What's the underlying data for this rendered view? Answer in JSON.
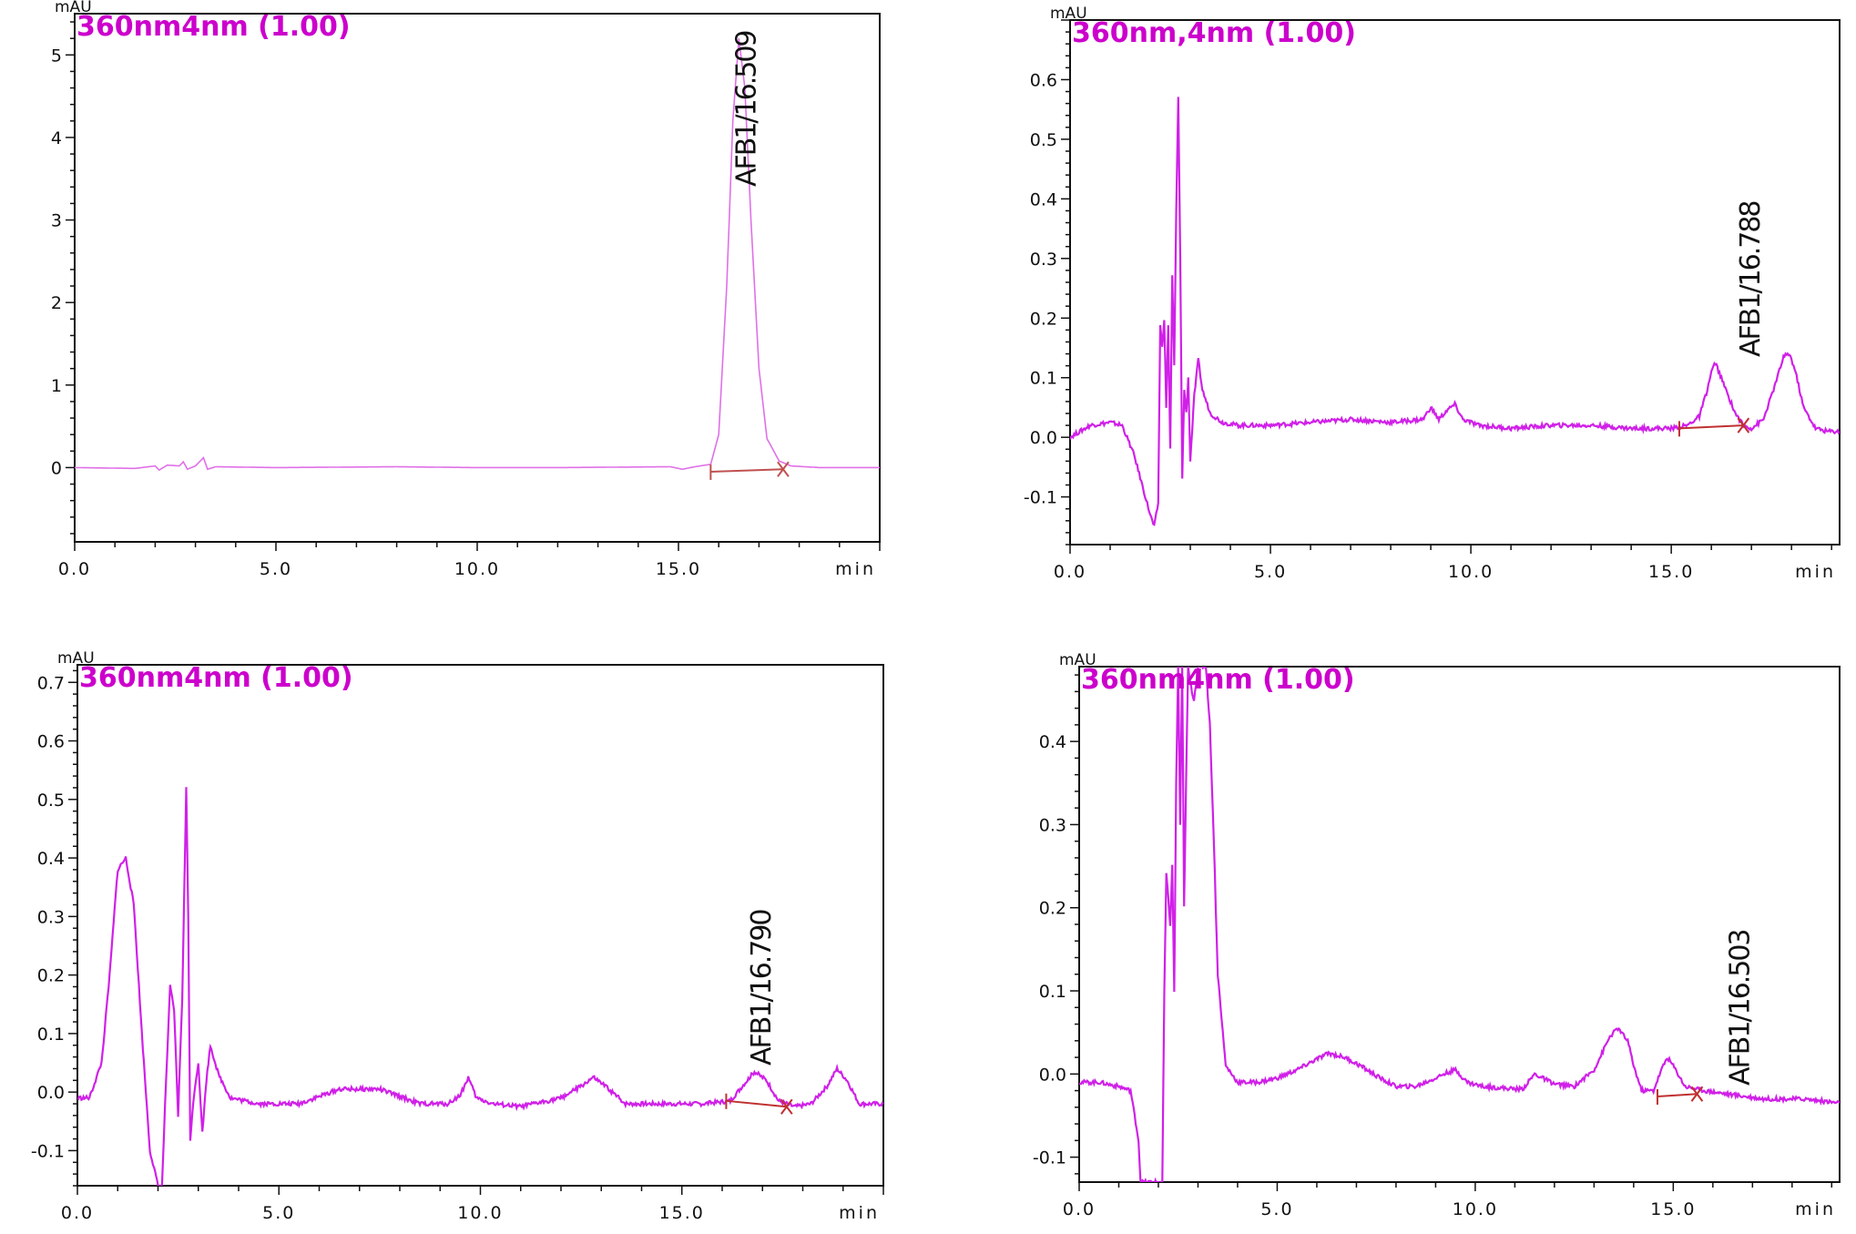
{
  "chart_data": [
    {
      "type": "line",
      "title": "360nm4nm (1.00)",
      "ylabel": "mAU",
      "xunit": "min",
      "xlim": [
        0,
        20
      ],
      "ylim": [
        -0.9,
        5.5
      ],
      "xticks": [
        "0.0",
        "5.0",
        "10.0",
        "15.0"
      ],
      "yticks": [
        "5",
        "4",
        "3",
        "2",
        "1",
        "0"
      ],
      "colors": {
        "trace": "#e070e8",
        "title": "#cc00cc",
        "baseline": "#c05050"
      },
      "peak_label": "AFB1/16.509",
      "baseline_marker": {
        "x_start": 15.8,
        "x_end": 17.6,
        "y_start": -0.05,
        "y_end": -0.02
      },
      "series": [
        {
          "x": [
            0,
            1.5,
            2.0,
            2.1,
            2.3,
            2.6,
            2.7,
            2.8,
            3.0,
            3.2,
            3.3,
            3.5,
            5,
            8,
            10,
            12,
            14.8,
            15.1,
            15.4,
            15.8,
            16.0,
            16.2,
            16.35,
            16.5,
            16.65,
            16.8,
            17.0,
            17.2,
            17.5,
            17.8,
            18.5,
            20
          ],
          "y": [
            0,
            -0.01,
            0.02,
            -0.03,
            0.03,
            0.02,
            0.07,
            -0.02,
            0.02,
            0.12,
            -0.02,
            0.01,
            0,
            0.01,
            0,
            0,
            0.01,
            -0.02,
            0.01,
            0.04,
            0.4,
            2.2,
            4.2,
            5.2,
            4.6,
            3.0,
            1.2,
            0.35,
            0.08,
            0.02,
            0,
            0
          ]
        }
      ]
    },
    {
      "type": "line",
      "title": "360nm,4nm (1.00)",
      "ylabel": "mAU",
      "xunit": "min",
      "xlim": [
        0,
        19.2
      ],
      "ylim": [
        -0.18,
        0.7
      ],
      "xticks": [
        "0.0",
        "5.0",
        "10.0",
        "15.0"
      ],
      "yticks": [
        "0.6",
        "0.5",
        "0.4",
        "0.3",
        "0.2",
        "0.1",
        "0.0",
        "-0.1"
      ],
      "colors": {
        "trace": "#d020e8",
        "title": "#cc00cc",
        "baseline": "#c03030"
      },
      "peak_label": "AFB1/16.788",
      "baseline_marker": {
        "x_start": 15.2,
        "x_end": 16.8,
        "y_start": 0.015,
        "y_end": 0.02
      },
      "series": [
        {
          "x": [
            0,
            0.5,
            1.0,
            1.3,
            1.6,
            1.8,
            2.0,
            2.1,
            2.2,
            2.25,
            2.3,
            2.35,
            2.4,
            2.45,
            2.5,
            2.55,
            2.6,
            2.65,
            2.7,
            2.75,
            2.8,
            2.85,
            2.9,
            2.95,
            3.0,
            3.1,
            3.2,
            3.3,
            3.5,
            3.8,
            4.2,
            5,
            6,
            7,
            8,
            8.8,
            9.0,
            9.2,
            9.4,
            9.6,
            9.8,
            10.2,
            11,
            12,
            13,
            14,
            15,
            15.4,
            15.7,
            15.9,
            16.0,
            16.1,
            16.3,
            16.6,
            16.8,
            17.0,
            17.3,
            17.6,
            17.8,
            17.95,
            18.1,
            18.3,
            18.6,
            18.9,
            19.2
          ],
          "y": [
            0,
            0.02,
            0.025,
            0.02,
            -0.03,
            -0.08,
            -0.13,
            -0.15,
            -0.11,
            0.19,
            0.15,
            0.2,
            0.05,
            0.19,
            -0.02,
            0.27,
            0.12,
            0.38,
            0.57,
            0.3,
            -0.07,
            0.08,
            0.04,
            0.1,
            -0.04,
            0.07,
            0.13,
            0.08,
            0.04,
            0.025,
            0.02,
            0.02,
            0.025,
            0.03,
            0.025,
            0.03,
            0.05,
            0.03,
            0.045,
            0.055,
            0.03,
            0.02,
            0.015,
            0.02,
            0.02,
            0.015,
            0.015,
            0.02,
            0.035,
            0.08,
            0.11,
            0.125,
            0.09,
            0.04,
            0.02,
            0.015,
            0.03,
            0.09,
            0.135,
            0.14,
            0.11,
            0.05,
            0.015,
            0.01,
            0.01
          ]
        }
      ]
    },
    {
      "type": "line",
      "title": "360nm4nm (1.00)",
      "ylabel": "mAU",
      "xunit": "min",
      "xlim": [
        0,
        20
      ],
      "ylim": [
        -0.16,
        0.73
      ],
      "xticks": [
        "0.0",
        "5.0",
        "10.0",
        "15.0"
      ],
      "yticks": [
        "0.7",
        "0.6",
        "0.5",
        "0.4",
        "0.3",
        "0.2",
        "0.1",
        "0.0",
        "-0.1"
      ],
      "colors": {
        "trace": "#d020e8",
        "title": "#cc00cc",
        "baseline": "#c03030"
      },
      "peak_label": "AFB1/16.790",
      "baseline_marker": {
        "x_start": 16.1,
        "x_end": 17.6,
        "y_start": -0.015,
        "y_end": -0.025
      },
      "series": [
        {
          "x": [
            0,
            0.3,
            0.6,
            0.8,
            1.0,
            1.2,
            1.4,
            1.6,
            1.8,
            2.0,
            2.1,
            2.2,
            2.3,
            2.4,
            2.5,
            2.6,
            2.7,
            2.75,
            2.8,
            2.9,
            3.0,
            3.1,
            3.2,
            3.3,
            3.5,
            3.8,
            4.5,
            5.5,
            6.5,
            7.5,
            8.5,
            9.2,
            9.5,
            9.7,
            9.9,
            10.3,
            11,
            12,
            12.5,
            12.8,
            13.1,
            13.6,
            14.5,
            15.5,
            16.2,
            16.5,
            16.8,
            17.1,
            17.4,
            17.8,
            18.2,
            18.6,
            18.85,
            19.1,
            19.4,
            20
          ],
          "y": [
            -0.01,
            -0.01,
            0.05,
            0.2,
            0.38,
            0.4,
            0.32,
            0.1,
            -0.1,
            -0.16,
            -0.16,
            0.02,
            0.18,
            0.14,
            -0.04,
            0.16,
            0.52,
            0.3,
            -0.08,
            0.0,
            0.05,
            -0.07,
            0.02,
            0.08,
            0.03,
            -0.01,
            -0.02,
            -0.02,
            0.005,
            0.005,
            -0.02,
            -0.02,
            -0.005,
            0.025,
            -0.01,
            -0.02,
            -0.025,
            -0.01,
            0.01,
            0.025,
            0.01,
            -0.02,
            -0.02,
            -0.02,
            -0.015,
            0.01,
            0.035,
            0.02,
            -0.015,
            -0.025,
            -0.02,
            0.01,
            0.04,
            0.02,
            -0.02,
            -0.02
          ]
        }
      ]
    },
    {
      "type": "line",
      "title": "360nm4nm (1.00)",
      "ylabel": "mAU",
      "xunit": "min",
      "xlim": [
        0,
        19.2
      ],
      "ylim": [
        -0.13,
        0.49
      ],
      "xticks": [
        "0.0",
        "5.0",
        "10.0",
        "15.0"
      ],
      "yticks": [
        "0.4",
        "0.3",
        "0.2",
        "0.1",
        "0.0",
        "-0.1"
      ],
      "colors": {
        "trace": "#d020e8",
        "title": "#cc00cc",
        "baseline": "#c03030"
      },
      "peak_label": "AFB1/16.503",
      "baseline_marker": {
        "x_start": 14.6,
        "x_end": 15.6,
        "y_start": -0.027,
        "y_end": -0.024
      },
      "series": [
        {
          "x": [
            0,
            0.5,
            1.0,
            1.3,
            1.5,
            1.55,
            1.6,
            2.1,
            2.15,
            2.2,
            2.3,
            2.35,
            2.4,
            2.45,
            2.5,
            2.55,
            2.6,
            2.65,
            2.7,
            2.75,
            2.8,
            2.9,
            3.0,
            3.1,
            3.2,
            3.3,
            3.4,
            3.5,
            3.7,
            4.0,
            4.5,
            5.0,
            5.5,
            6.0,
            6.3,
            6.7,
            7.1,
            7.6,
            8.0,
            8.5,
            9.0,
            9.2,
            9.5,
            9.8,
            10.2,
            11.0,
            11.2,
            11.5,
            12.0,
            12.5,
            13.0,
            13.2,
            13.4,
            13.6,
            13.85,
            14.0,
            14.2,
            14.5,
            14.7,
            14.85,
            15.0,
            15.3,
            15.8,
            16.5,
            17.3,
            18.3,
            19.2
          ],
          "y": [
            -0.01,
            -0.01,
            -0.015,
            -0.02,
            -0.08,
            -0.13,
            -0.13,
            -0.13,
            0.1,
            0.24,
            0.18,
            0.25,
            0.1,
            0.35,
            0.49,
            0.3,
            0.49,
            0.2,
            0.35,
            0.49,
            0.47,
            0.45,
            0.49,
            0.49,
            0.49,
            0.42,
            0.28,
            0.12,
            0.01,
            -0.01,
            -0.01,
            -0.005,
            0.005,
            0.018,
            0.025,
            0.02,
            0.01,
            -0.005,
            -0.015,
            -0.015,
            -0.005,
            0.0,
            0.005,
            -0.01,
            -0.015,
            -0.018,
            -0.018,
            0.0,
            -0.012,
            -0.015,
            0.005,
            0.025,
            0.045,
            0.055,
            0.04,
            0.01,
            -0.02,
            -0.02,
            0.005,
            0.02,
            0.01,
            -0.015,
            -0.02,
            -0.025,
            -0.03,
            -0.03,
            -0.035
          ]
        }
      ]
    }
  ]
}
